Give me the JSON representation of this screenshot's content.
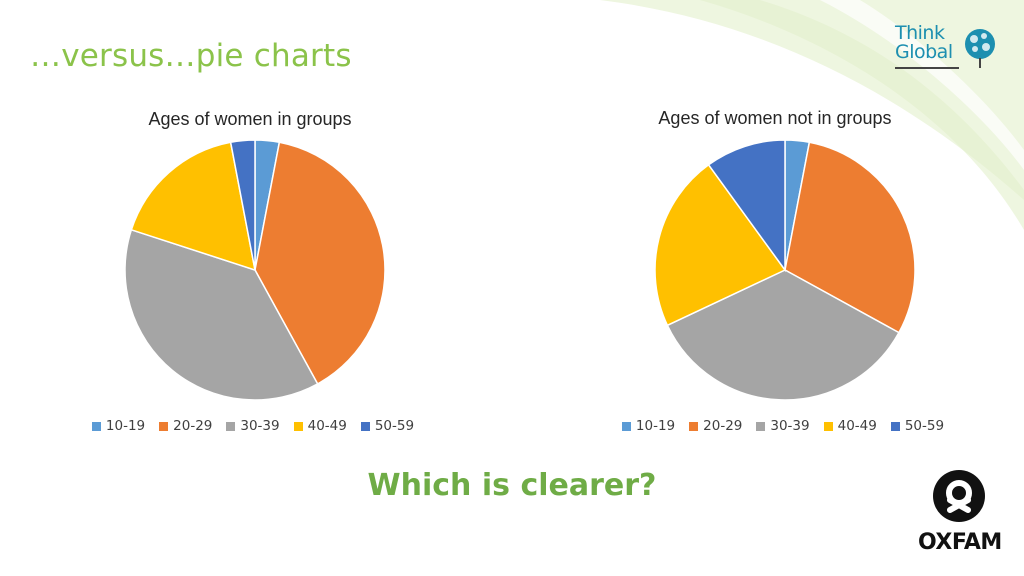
{
  "slide": {
    "title": "…versus…pie charts",
    "question": "Which is clearer?"
  },
  "logos": {
    "think_global": {
      "line1": "Think",
      "line2": "Global"
    },
    "oxfam": {
      "text": "OXFAM"
    }
  },
  "colors": {
    "title": "#8bc34a",
    "question": "#6fac46",
    "background_swirl": "#e9f3d6",
    "series": {
      "10-19": "#5b9bd5",
      "20-29": "#ed7d31",
      "30-39": "#a5a5a5",
      "40-49": "#ffc000",
      "50-59": "#4472c4"
    }
  },
  "chart_data": [
    {
      "type": "pie",
      "title": "Ages of women in groups",
      "categories": [
        "10-19",
        "20-29",
        "30-39",
        "40-49",
        "50-59"
      ],
      "values": [
        3,
        39,
        38,
        17,
        3
      ],
      "legend": "bottom"
    },
    {
      "type": "pie",
      "title": "Ages of women not in groups",
      "categories": [
        "10-19",
        "20-29",
        "30-39",
        "40-49",
        "50-59"
      ],
      "values": [
        3,
        30,
        35,
        22,
        10
      ],
      "legend": "bottom"
    }
  ]
}
